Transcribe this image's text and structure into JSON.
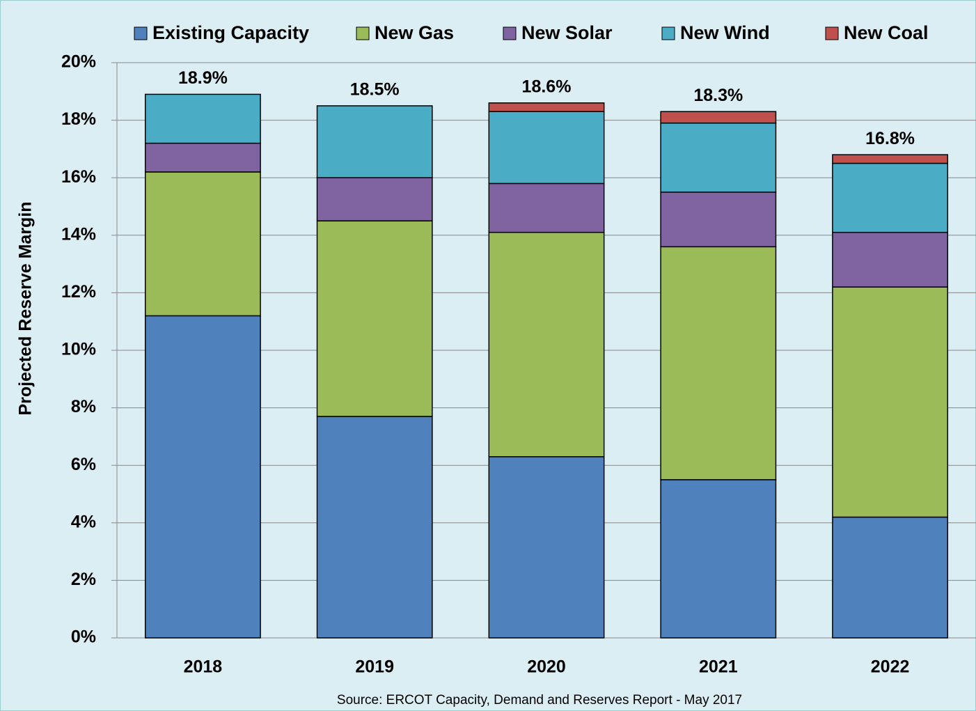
{
  "chart_data": {
    "type": "stacked_bar",
    "y_label": "Projected Reserve Margin",
    "source": "Source: ERCOT Capacity, Demand and Reserves Report - May 2017",
    "categories": [
      "2018",
      "2019",
      "2020",
      "2021",
      "2022"
    ],
    "series": [
      {
        "name": "Existing Capacity",
        "color": "#4f81bd",
        "values": [
          11.2,
          7.7,
          6.3,
          5.5,
          4.2
        ]
      },
      {
        "name": "New Gas",
        "color": "#9bbb59",
        "values": [
          5.0,
          6.8,
          7.8,
          8.1,
          8.0
        ]
      },
      {
        "name": "New Solar",
        "color": "#8064a2",
        "values": [
          1.0,
          1.5,
          1.7,
          1.9,
          1.9
        ]
      },
      {
        "name": "New Wind",
        "color": "#4bacc6",
        "values": [
          1.7,
          2.5,
          2.5,
          2.4,
          2.4
        ]
      },
      {
        "name": "New Coal",
        "color": "#c0504d",
        "values": [
          0,
          0,
          0.3,
          0.4,
          0.3
        ]
      }
    ],
    "totals": [
      18.9,
      18.5,
      18.6,
      18.3,
      16.8
    ],
    "total_labels": [
      "18.9%",
      "18.5%",
      "18.6%",
      "18.3%",
      "16.8%"
    ],
    "ylim": [
      0,
      20
    ],
    "yticks": [
      {
        "value": 0,
        "label": "0%"
      },
      {
        "value": 2,
        "label": "2%"
      },
      {
        "value": 4,
        "label": "4%"
      },
      {
        "value": 6,
        "label": "6%"
      },
      {
        "value": 8,
        "label": "8%"
      },
      {
        "value": 10,
        "label": "10%"
      },
      {
        "value": 12,
        "label": "12%"
      },
      {
        "value": 14,
        "label": "14%"
      },
      {
        "value": 16,
        "label": "16%"
      },
      {
        "value": 18,
        "label": "18%"
      },
      {
        "value": 20,
        "label": "20%"
      }
    ],
    "grid": true,
    "legend": "top"
  }
}
